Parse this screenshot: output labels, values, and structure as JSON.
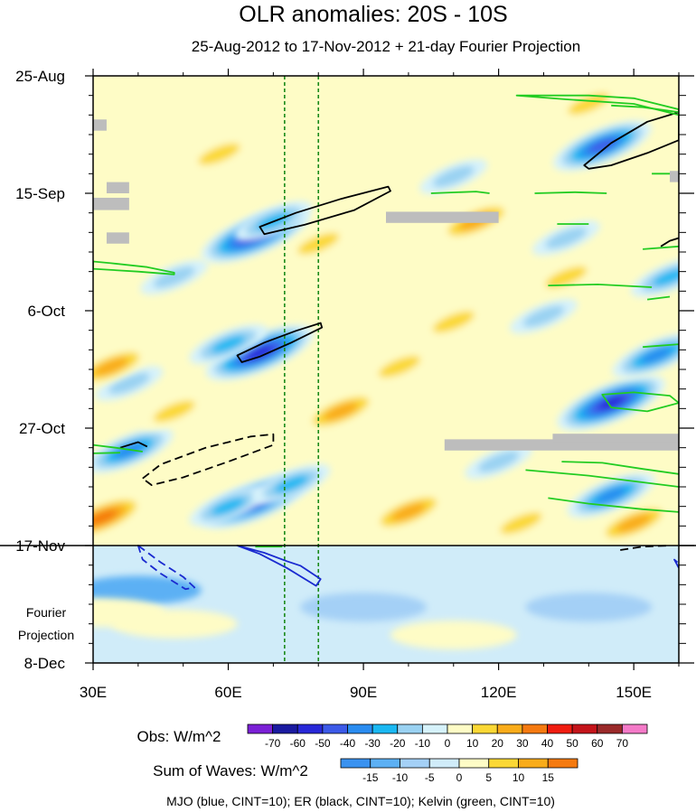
{
  "chart_data": {
    "type": "heatmap",
    "title": "OLR anomalies: 20S - 10S",
    "subtitle": "25-Aug-2012 to 17-Nov-2012 + 21-day Fourier Projection",
    "x_range": [
      30,
      160
    ],
    "x_ticks": [
      {
        "value": 30,
        "label": "30E"
      },
      {
        "value": 60,
        "label": "60E"
      },
      {
        "value": 90,
        "label": "90E"
      },
      {
        "value": 120,
        "label": "120E"
      },
      {
        "value": 150,
        "label": "150E"
      }
    ],
    "y_range_days": [
      0,
      105
    ],
    "y_ticks": [
      {
        "day": 0,
        "label": "25-Aug"
      },
      {
        "day": 21,
        "label": "15-Sep"
      },
      {
        "day": 42,
        "label": "6-Oct"
      },
      {
        "day": 63,
        "label": "27-Oct"
      },
      {
        "day": 84,
        "label": "17-Nov"
      },
      {
        "day": 105,
        "label": "8-Dec"
      }
    ],
    "observation_end_day": 84,
    "projection_label": [
      "Fourier",
      "Projection"
    ],
    "reference_longitudes": [
      72.5,
      80
    ],
    "obs_colorbar": {
      "label": "Obs: W/m^2",
      "levels": [
        -70,
        -60,
        -50,
        -40,
        -30,
        -20,
        -10,
        0,
        10,
        20,
        30,
        40,
        50,
        60,
        70
      ],
      "colors": [
        "#7b20d6",
        "#1a1aa0",
        "#2828d8",
        "#3c5ae8",
        "#2a8cf0",
        "#1ab8f2",
        "#9ad2f2",
        "#d6f2fb",
        "#fefcc6",
        "#fbd835",
        "#f9ac1a",
        "#f57a10",
        "#f01c10",
        "#c4141a",
        "#9a2a2a",
        "#f47ac8"
      ]
    },
    "waves_colorbar": {
      "label": "Sum of Waves: W/m^2",
      "levels": [
        -15,
        -10,
        -5,
        0,
        5,
        10,
        15
      ],
      "colors": [
        "#3a92f0",
        "#5cb0f4",
        "#a4d0f6",
        "#d0ecf9",
        "#fefcc6",
        "#fbd835",
        "#f9ac1a",
        "#f57a10"
      ]
    },
    "contour_legend": "MJO (blue, CINT=10); ER (black, CINT=10); Kelvin (green, CINT=10)",
    "anomaly_features": [
      {
        "lon": 66,
        "day": 28.5,
        "value": -55
      },
      {
        "lon": 70,
        "day": 26,
        "value": -30
      },
      {
        "lon": 67,
        "day": 49.5,
        "value": -65
      },
      {
        "lon": 60,
        "day": 48,
        "value": -30
      },
      {
        "lon": 66,
        "day": 76,
        "value": -65
      },
      {
        "lon": 60,
        "day": 77,
        "value": -30
      },
      {
        "lon": 74,
        "day": 73,
        "value": -30
      },
      {
        "lon": 38,
        "day": 67,
        "value": -40
      },
      {
        "lon": 38,
        "day": 55,
        "value": -20
      },
      {
        "lon": 48,
        "day": 36,
        "value": -15
      },
      {
        "lon": 143,
        "day": 12.5,
        "value": -45
      },
      {
        "lon": 145,
        "day": 58.5,
        "value": -55
      },
      {
        "lon": 145,
        "day": 75,
        "value": -40
      },
      {
        "lon": 155,
        "day": 50,
        "value": -35
      },
      {
        "lon": 158,
        "day": 36,
        "value": -30
      },
      {
        "lon": 135,
        "day": 29,
        "value": -15
      },
      {
        "lon": 110,
        "day": 18,
        "value": -15
      },
      {
        "lon": 130,
        "day": 43,
        "value": -15
      },
      {
        "lon": 120,
        "day": 69,
        "value": -20
      },
      {
        "lon": 32,
        "day": 79,
        "value": 40
      },
      {
        "lon": 34,
        "day": 52,
        "value": 25
      },
      {
        "lon": 85,
        "day": 60,
        "value": 25
      },
      {
        "lon": 115,
        "day": 26,
        "value": 25
      },
      {
        "lon": 140,
        "day": 5,
        "value": 15
      },
      {
        "lon": 98,
        "day": 52,
        "value": 15
      },
      {
        "lon": 80,
        "day": 30,
        "value": 15
      },
      {
        "lon": 58,
        "day": 14,
        "value": 15
      },
      {
        "lon": 135,
        "day": 36,
        "value": 20
      },
      {
        "lon": 100,
        "day": 78,
        "value": 25
      },
      {
        "lon": 150,
        "day": 80,
        "value": 25
      },
      {
        "lon": 110,
        "day": 44,
        "value": 15
      },
      {
        "lon": 48,
        "day": 60,
        "value": 15
      },
      {
        "lon": 125,
        "day": 80,
        "value": 20
      }
    ],
    "projection_features": [
      {
        "lon": 40,
        "day": 92,
        "value": -10
      },
      {
        "lon": 90,
        "day": 95,
        "value": -8
      },
      {
        "lon": 140,
        "day": 95,
        "value": -8
      },
      {
        "lon": 48,
        "day": 98,
        "value": 5
      },
      {
        "lon": 110,
        "day": 100,
        "value": 5
      },
      {
        "lon": 32,
        "day": 96,
        "value": 5
      }
    ],
    "missing_data": [
      {
        "lon": [
          30,
          33
        ],
        "day": [
          7.8,
          9.8
        ]
      },
      {
        "lon": [
          33,
          38
        ],
        "day": [
          19,
          21
        ]
      },
      {
        "lon": [
          30,
          38
        ],
        "day": [
          21.8,
          24
        ]
      },
      {
        "lon": [
          33,
          38
        ],
        "day": [
          28,
          30
        ]
      },
      {
        "lon": [
          95,
          120
        ],
        "day": [
          24.3,
          26.3
        ]
      },
      {
        "lon": [
          108,
          160
        ],
        "day": [
          65,
          67
        ]
      },
      {
        "lon": [
          132,
          160
        ],
        "day": [
          64,
          65.5
        ]
      },
      {
        "lon": [
          158,
          160
        ],
        "day": [
          17,
          19
        ]
      }
    ],
    "contours": [
      {
        "wave": "ER",
        "style": "solid",
        "points": [
          [
            67,
            27
          ],
          [
            75,
            24.5
          ],
          [
            85,
            22
          ],
          [
            95.5,
            19.8
          ],
          [
            96,
            20.6
          ],
          [
            88,
            24
          ],
          [
            77,
            26.6
          ],
          [
            68,
            28.3
          ]
        ]
      },
      {
        "wave": "ER",
        "style": "solid",
        "points": [
          [
            62,
            50
          ],
          [
            68,
            47.7
          ],
          [
            75,
            45.6
          ],
          [
            80.5,
            44.2
          ],
          [
            80.8,
            45
          ],
          [
            74,
            47.7
          ],
          [
            67,
            50.2
          ],
          [
            63,
            51.2
          ]
        ]
      },
      {
        "wave": "ER",
        "style": "solid",
        "points": [
          [
            139,
            16
          ],
          [
            145,
            12
          ],
          [
            153,
            8.2
          ],
          [
            160,
            6.5
          ],
          [
            160,
            11.5
          ],
          [
            153,
            13.8
          ],
          [
            145,
            16
          ],
          [
            140,
            16.6
          ]
        ]
      },
      {
        "wave": "ER",
        "style": "solid",
        "points": [
          [
            156,
            30.5
          ],
          [
            158,
            29.5
          ],
          [
            160,
            29
          ]
        ]
      },
      {
        "wave": "ER",
        "style": "solid",
        "points": [
          [
            36,
            66.5
          ],
          [
            40,
            65.5
          ],
          [
            42,
            66.3
          ]
        ]
      },
      {
        "wave": "ER",
        "style": "dashed",
        "points": [
          [
            41,
            72
          ],
          [
            45,
            69.5
          ],
          [
            55,
            66.5
          ],
          [
            65,
            64.5
          ],
          [
            70,
            64.1
          ],
          [
            70,
            66
          ],
          [
            60,
            69
          ],
          [
            50,
            71.8
          ],
          [
            43,
            73.2
          ]
        ]
      },
      {
        "wave": "ER",
        "style": "dashed",
        "points": [
          [
            147,
            84.8
          ],
          [
            152,
            84.2
          ],
          [
            158,
            84
          ]
        ]
      },
      {
        "wave": "MJO",
        "style": "solid",
        "points": [
          [
            62,
            84
          ],
          [
            68,
            85.3
          ],
          [
            73,
            86.8
          ],
          [
            76,
            87.6
          ],
          [
            80.5,
            90
          ],
          [
            79.5,
            91.2
          ],
          [
            73,
            88
          ],
          [
            67,
            85.5
          ]
        ]
      },
      {
        "wave": "MJO",
        "style": "dashed",
        "points": [
          [
            40,
            84
          ],
          [
            45,
            87
          ],
          [
            50,
            89.6
          ],
          [
            52.5,
            91.5
          ],
          [
            50.5,
            91.8
          ],
          [
            45,
            89
          ],
          [
            41,
            86.5
          ]
        ]
      },
      {
        "wave": "MJO",
        "style": "solid",
        "points": [
          [
            160,
            88
          ],
          [
            159,
            86.5
          ],
          [
            159.7,
            87
          ]
        ]
      },
      {
        "wave": "Kelvin",
        "style": "solid",
        "points": [
          [
            124,
            3.5
          ],
          [
            140,
            3.5
          ],
          [
            150,
            4
          ],
          [
            160,
            6
          ],
          [
            160,
            7
          ],
          [
            150,
            5
          ],
          [
            135,
            4.2
          ]
        ]
      },
      {
        "wave": "Kelvin",
        "style": "solid",
        "points": [
          [
            145,
            5.3
          ],
          [
            152,
            5.6
          ],
          [
            160,
            6.5
          ]
        ]
      },
      {
        "wave": "Kelvin",
        "style": "solid",
        "points": [
          [
            30,
            33.2
          ],
          [
            34,
            33.5
          ],
          [
            42,
            34.2
          ],
          [
            48,
            35.2
          ],
          [
            48,
            35.5
          ],
          [
            40,
            35
          ],
          [
            30,
            34.5
          ]
        ]
      },
      {
        "wave": "Kelvin",
        "style": "solid",
        "points": [
          [
            105,
            21
          ],
          [
            115,
            20.7
          ],
          [
            118,
            21
          ]
        ]
      },
      {
        "wave": "Kelvin",
        "style": "solid",
        "points": [
          [
            128,
            21
          ],
          [
            137,
            20.8
          ],
          [
            144,
            21
          ]
        ]
      },
      {
        "wave": "Kelvin",
        "style": "solid",
        "points": [
          [
            131,
            37.5
          ],
          [
            142,
            37.3
          ],
          [
            154,
            37.8
          ]
        ]
      },
      {
        "wave": "Kelvin",
        "style": "solid",
        "points": [
          [
            133,
            26.5
          ],
          [
            140,
            26.5
          ]
        ]
      },
      {
        "wave": "Kelvin",
        "style": "solid",
        "points": [
          [
            152,
            31
          ],
          [
            160,
            30.5
          ]
        ]
      },
      {
        "wave": "Kelvin",
        "style": "solid",
        "points": [
          [
            153,
            40
          ],
          [
            158,
            39.5
          ]
        ]
      },
      {
        "wave": "Kelvin",
        "style": "solid",
        "points": [
          [
            152,
            48.5
          ],
          [
            160,
            48
          ]
        ]
      },
      {
        "wave": "Kelvin",
        "style": "solid",
        "points": [
          [
            154,
            17.5
          ],
          [
            158,
            17.5
          ]
        ]
      },
      {
        "wave": "Kelvin",
        "style": "solid",
        "points": [
          [
            143,
            57
          ],
          [
            150,
            56.6
          ],
          [
            158,
            57.2
          ],
          [
            160,
            58.5
          ],
          [
            153,
            60
          ],
          [
            145,
            59.3
          ]
        ]
      },
      {
        "wave": "Kelvin",
        "style": "solid",
        "points": [
          [
            134,
            69
          ],
          [
            143,
            69.2
          ],
          [
            152,
            70.3
          ],
          [
            160,
            71.2
          ]
        ]
      },
      {
        "wave": "Kelvin",
        "style": "solid",
        "points": [
          [
            126,
            70.5
          ],
          [
            140,
            71.5
          ],
          [
            155,
            73
          ],
          [
            160,
            73.5
          ]
        ]
      },
      {
        "wave": "Kelvin",
        "style": "solid",
        "points": [
          [
            131,
            75.5
          ],
          [
            140,
            76.5
          ],
          [
            152,
            77.5
          ],
          [
            160,
            78
          ]
        ]
      },
      {
        "wave": "Kelvin",
        "style": "solid",
        "points": [
          [
            30,
            66
          ],
          [
            35,
            66.5
          ],
          [
            41,
            67.2
          ]
        ]
      },
      {
        "wave": "Kelvin",
        "style": "solid",
        "points": [
          [
            30,
            67.5
          ],
          [
            36,
            67.4
          ]
        ]
      },
      {
        "wave": "Kelvin",
        "style": "solid",
        "points": [
          [
            66,
            84.2
          ],
          [
            72,
            84.2
          ]
        ]
      }
    ]
  }
}
